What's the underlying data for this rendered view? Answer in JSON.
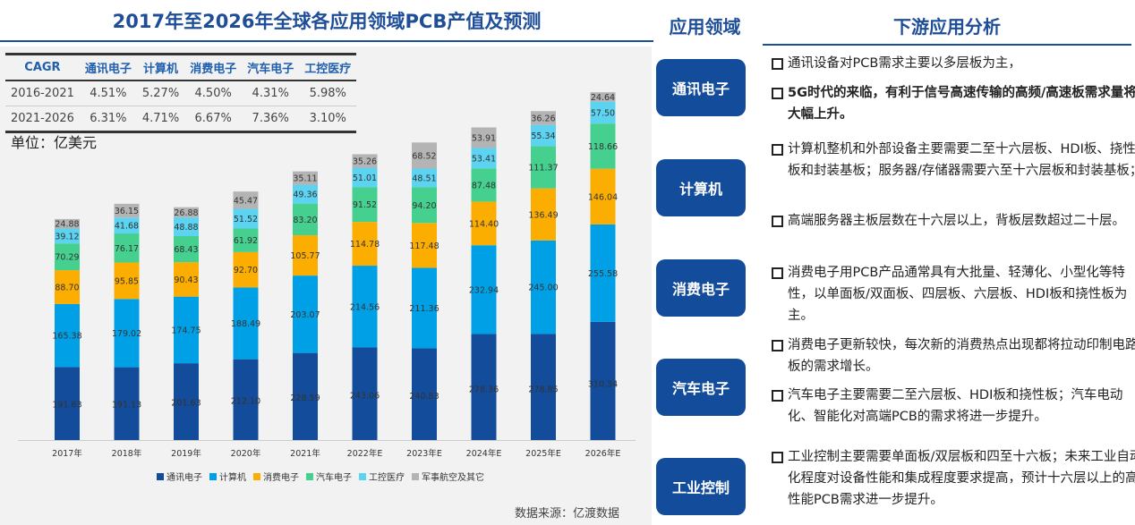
{
  "title": "2017年至2026年全球各应用领域PCB产值及预测",
  "cagr": {
    "headers": [
      "CAGR",
      "通讯电子",
      "计算机",
      "消费电子",
      "汽车电子",
      "工控医疗"
    ],
    "rows": [
      [
        "2016-2021",
        "4.51%",
        "5.27%",
        "4.50%",
        "4.31%",
        "5.98%"
      ],
      [
        "2021-2026",
        "6.31%",
        "4.71%",
        "6.67%",
        "7.36%",
        "3.10%"
      ]
    ]
  },
  "unit": "单位：亿美元",
  "source": "数据来源：亿渡数据",
  "chart_data": {
    "type": "bar",
    "stacked": true,
    "title": "2017年至2026年全球各应用领域PCB产值及预测",
    "ylabel": "亿美元",
    "ylim": [
      0,
      1000
    ],
    "categories": [
      "2017年",
      "2018年",
      "2019年",
      "2020年",
      "2021年",
      "2022年E",
      "2023年E",
      "2024年E",
      "2025年E",
      "2026年E"
    ],
    "series": [
      {
        "name": "通讯电子",
        "color": "#124c9a",
        "values": [
          191.63,
          191.13,
          201.63,
          212.1,
          228.59,
          243.06,
          240.83,
          278.36,
          278.85,
          310.34
        ]
      },
      {
        "name": "计算机",
        "color": "#00a0e6",
        "values": [
          165.38,
          179.02,
          174.75,
          188.49,
          203.07,
          214.56,
          211.36,
          232.94,
          245.0,
          255.58
        ]
      },
      {
        "name": "消费电子",
        "color": "#fbad00",
        "values": [
          88.7,
          95.85,
          90.43,
          92.7,
          105.77,
          114.78,
          117.48,
          114.4,
          136.49,
          146.04
        ]
      },
      {
        "name": "汽车电子",
        "color": "#45d08f",
        "values": [
          70.29,
          76.17,
          68.43,
          61.92,
          83.2,
          91.52,
          94.2,
          87.48,
          111.37,
          118.66
        ]
      },
      {
        "name": "工控医疗",
        "color": "#5cd3f0",
        "values": [
          39.12,
          41.68,
          48.88,
          51.52,
          49.36,
          51.01,
          48.51,
          53.41,
          55.34,
          57.5
        ]
      },
      {
        "name": "军事航空及其它",
        "color": "#b4b4b4",
        "values": [
          24.88,
          36.15,
          26.88,
          45.47,
          35.11,
          35.26,
          68.52,
          53.91,
          36.26,
          24.64
        ]
      }
    ]
  },
  "apps": {
    "header": "应用领域",
    "items": [
      "通讯电子",
      "计算机",
      "消费电子",
      "汽车电子",
      "工业控制"
    ]
  },
  "analysis": {
    "header": "下游应用分析",
    "items": [
      "通讯设备对PCB需求主要以多层板为主，",
      "5G时代的来临，有利于信号高速传输的高频/高速板需求量将大幅上升。",
      "计算机整机和外部设备主要需要二至十六层板、HDI板、挠性板和封装基板；服务器/存储器需要六至十六层板和封装基板；",
      "高端服务器主板层数在十六层以上，背板层数超过二十层。",
      "消费电子用PCB产品通常具有大批量、轻薄化、小型化等特性，以单面板/双面板、四层板、六层板、HDI板和挠性板为主。",
      "消费电子更新较快，每次新的消费热点出现都将拉动印制电路板的需求增长。",
      "汽车电子主要需要二至六层板、HDI板和挠性板；汽车电动化、智能化对高端PCB的需求将进一步提升。",
      "工业控制主要需要单面板/双层板和四至十六板；未来工业自动化程度对设备性能和集成程度要求提高，预计十六层以上的高性能PCB需求进一步提升。"
    ]
  }
}
